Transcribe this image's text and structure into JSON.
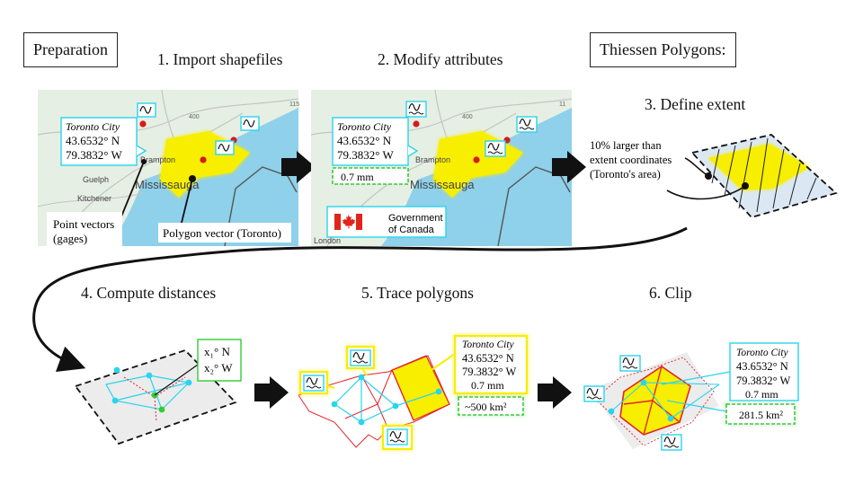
{
  "headers": {
    "preparation": "Preparation",
    "thiessen": "Thiessen Polygons:"
  },
  "steps": {
    "s1": "1. Import shapefiles",
    "s2": "2. Modify attributes",
    "s3": "3. Define extent",
    "s4": "4. Compute distances",
    "s5": "5. Trace polygons",
    "s6": "6. Clip"
  },
  "map": {
    "places": {
      "brampton": "Brampton",
      "mississauga": "Mississauga",
      "guelph": "Guelph",
      "kitchener": "Kitchener",
      "london": "London",
      "road_400": "400",
      "road_115": "115",
      "road_11": "11"
    }
  },
  "callout": {
    "name": "Toronto City",
    "lat": "43.6532° N",
    "lon": "79.3832° W",
    "precip": "0.7 mm"
  },
  "annotations": {
    "point_vectors_1": "Point vectors",
    "point_vectors_2": "(gages)",
    "polygon_vector": "Polygon vector (Toronto)",
    "extent_1": "10% larger than",
    "extent_2": "extent coordinates",
    "extent_3": "(Toronto's area)",
    "x1n": "x₁° N",
    "x2w": "x₂° W",
    "area_trace": "~500 km²",
    "area_clip": "281.5 km²"
  },
  "government": {
    "line1": "Government",
    "line2": "of Canada"
  },
  "colors": {
    "yellow": "#f7ee00",
    "water": "#8fd0ea",
    "land": "#e4efe2",
    "cyan": "#29d4ee",
    "red": "#e2242a",
    "green": "#33cc33"
  }
}
